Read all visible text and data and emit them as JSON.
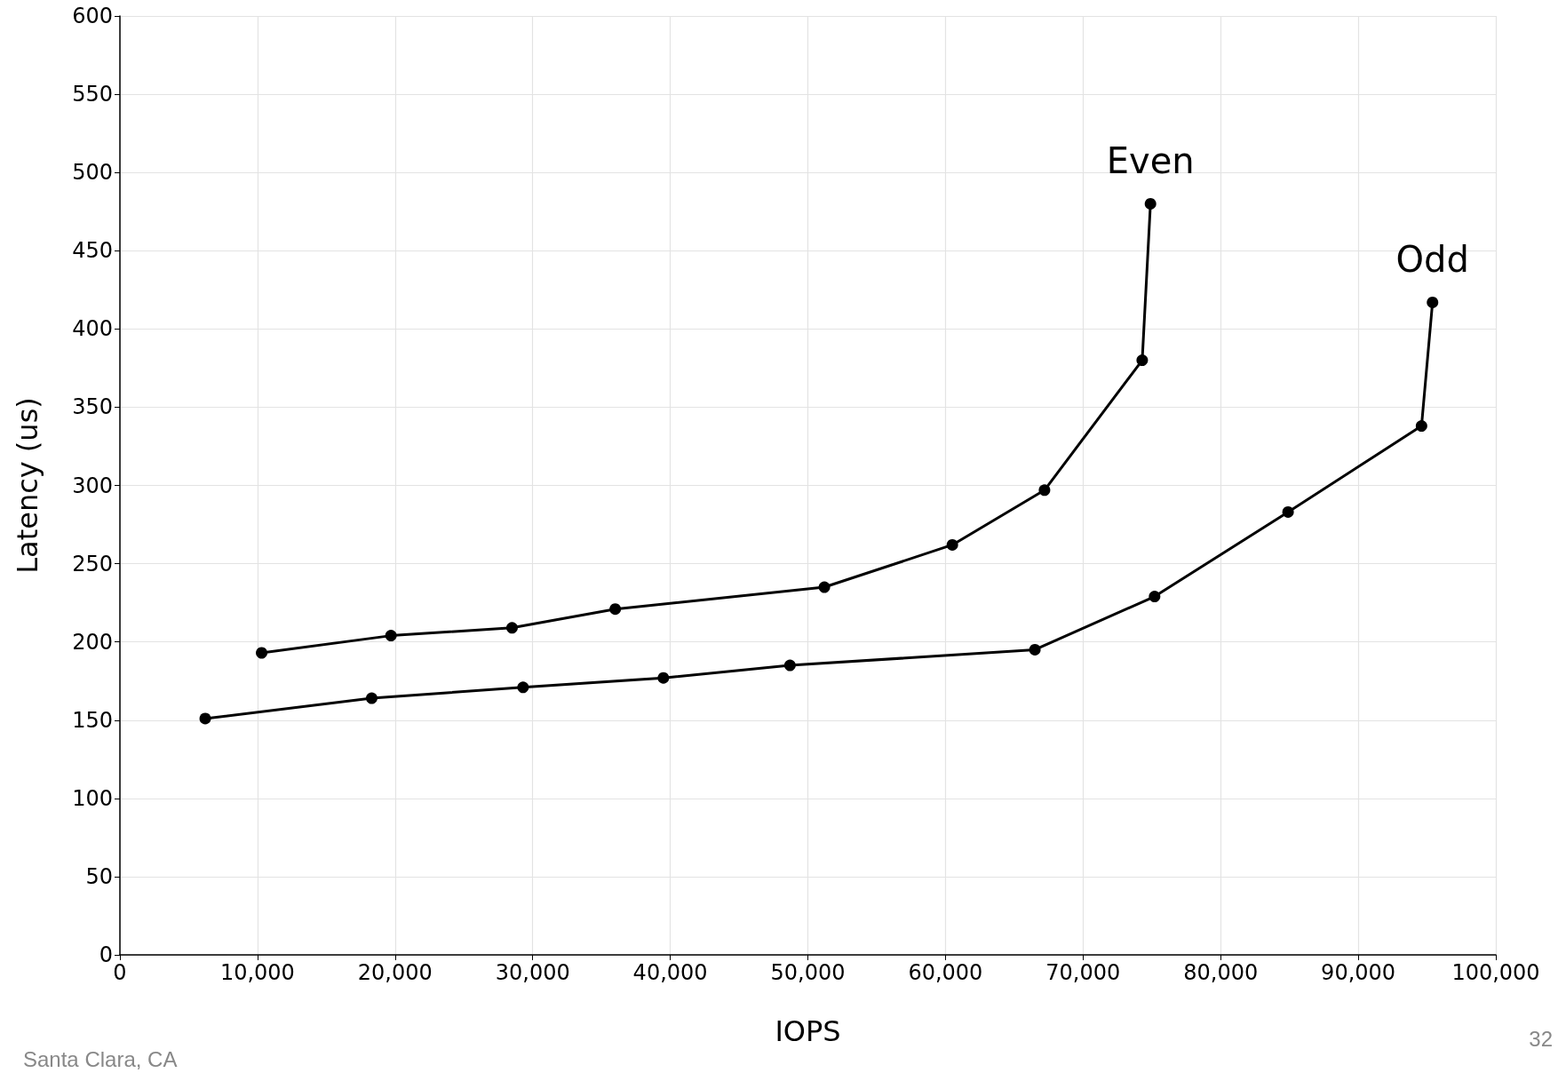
{
  "chart_data": {
    "type": "line",
    "xlabel": "IOPS",
    "ylabel": "Latency (us)",
    "series": [
      {
        "name": "Even",
        "color": "#000000",
        "x": [
          10300,
          19700,
          28500,
          36000,
          51200,
          60500,
          67200,
          74300,
          74900
        ],
        "values": [
          193,
          204,
          209,
          221,
          235,
          262,
          297,
          380,
          480
        ]
      },
      {
        "name": "Odd",
        "color": "#000000",
        "x": [
          6200,
          18300,
          29300,
          39500,
          48700,
          66500,
          75200,
          84900,
          94600,
          95400
        ],
        "values": [
          151,
          164,
          171,
          177,
          185,
          195,
          229,
          283,
          338,
          417
        ]
      }
    ],
    "xlim": [
      0,
      100000
    ],
    "xticks": [
      0,
      {
        "value": 10000,
        "label": "10,000"
      },
      {
        "value": 20000,
        "label": "20,000"
      },
      {
        "value": 30000,
        "label": "30,000"
      },
      {
        "value": 40000,
        "label": "40,000"
      },
      {
        "value": 50000,
        "label": "50,000"
      },
      {
        "value": 60000,
        "label": "60,000"
      },
      {
        "value": 70000,
        "label": "70,000"
      },
      {
        "value": 80000,
        "label": "80,000"
      },
      {
        "value": 90000,
        "label": "90,000"
      },
      {
        "value": 100000,
        "label": "100,000"
      }
    ],
    "ylim": [
      0,
      600
    ],
    "yticks": [
      0,
      50,
      100,
      150,
      200,
      250,
      300,
      350,
      400,
      450,
      500,
      550,
      600
    ],
    "grid": true,
    "legend": false,
    "marker": "circle",
    "line_style": "solid",
    "annotations": [
      "Santa Clara, CA",
      "32"
    ]
  }
}
